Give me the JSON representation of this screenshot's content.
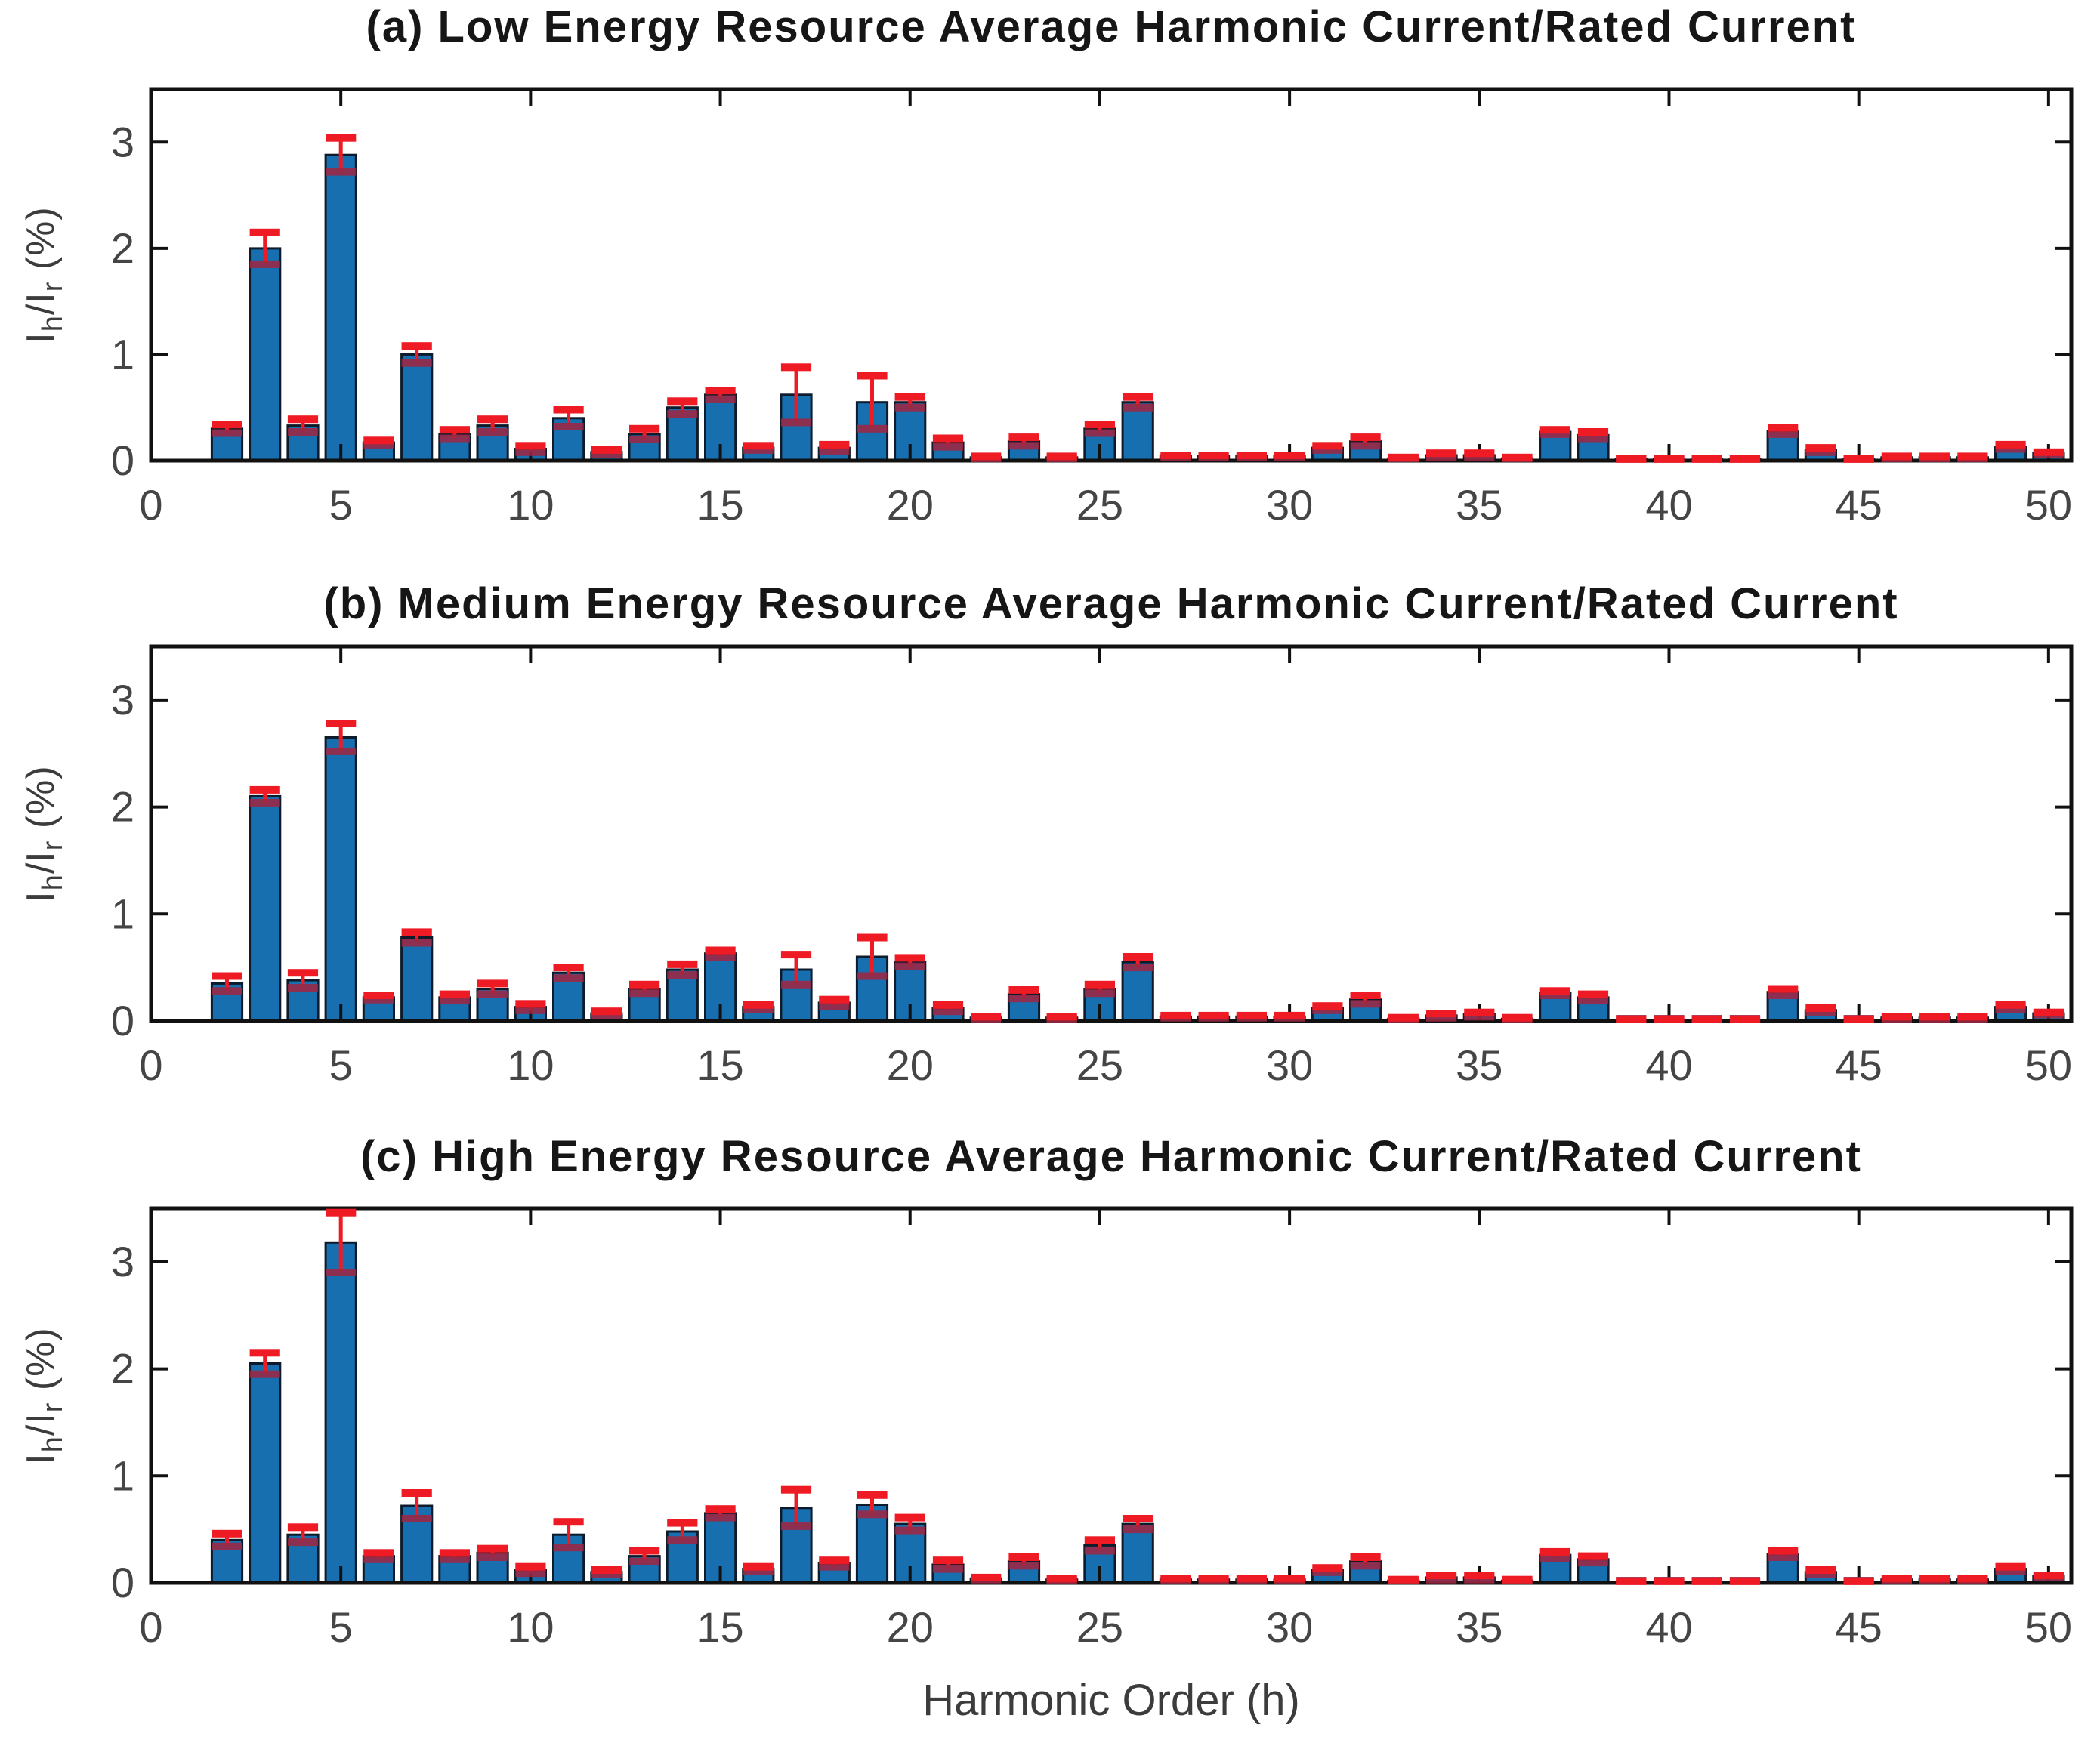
{
  "figure": {
    "xlabel": "Harmonic Order (h)",
    "ylabel": {
      "pre": "I",
      "sub1": "h",
      "mid": "/I",
      "sub2": "r",
      "post": " (%)"
    }
  },
  "chart_data": [
    {
      "type": "bar",
      "title": "(a) Low Energy Resource Average Harmonic Current/Rated Current",
      "ylabel": "I_h/I_r (%)",
      "xlabel": "",
      "xlim": [
        0,
        50.6
      ],
      "ylim": [
        0,
        3.5
      ],
      "xticks": [
        0,
        5,
        10,
        15,
        20,
        25,
        30,
        35,
        40,
        45,
        50
      ],
      "yticks": [
        0,
        1,
        2,
        3
      ],
      "grid": false,
      "bar_color": "#186fb0",
      "bar_edge_color": "#0d1b2a",
      "error_color": "#ee1b24",
      "error_low_color": "#9c2742",
      "x": [
        2,
        3,
        4,
        5,
        6,
        7,
        8,
        9,
        10,
        11,
        12,
        13,
        14,
        15,
        16,
        17,
        18,
        19,
        20,
        21,
        22,
        23,
        24,
        25,
        26,
        27,
        28,
        29,
        30,
        31,
        32,
        33,
        34,
        35,
        36,
        37,
        38,
        39,
        40,
        41,
        42,
        43,
        44,
        45,
        46,
        47,
        48,
        49,
        50
      ],
      "values": [
        0.3,
        2.0,
        0.33,
        2.88,
        0.17,
        1.0,
        0.25,
        0.33,
        0.11,
        0.4,
        0.08,
        0.25,
        0.5,
        0.62,
        0.12,
        0.62,
        0.12,
        0.55,
        0.55,
        0.17,
        0.03,
        0.18,
        0.03,
        0.3,
        0.55,
        0.04,
        0.04,
        0.04,
        0.04,
        0.12,
        0.18,
        0.02,
        0.05,
        0.05,
        0.02,
        0.27,
        0.24,
        0.01,
        0.01,
        0.01,
        0.01,
        0.28,
        0.1,
        0.01,
        0.03,
        0.03,
        0.03,
        0.13,
        0.07
      ],
      "errors": [
        0.04,
        0.15,
        0.06,
        0.16,
        0.02,
        0.08,
        0.04,
        0.06,
        0.03,
        0.08,
        0.02,
        0.05,
        0.06,
        0.04,
        0.02,
        0.26,
        0.03,
        0.25,
        0.05,
        0.04,
        0.01,
        0.04,
        0.01,
        0.04,
        0.05,
        0.01,
        0.01,
        0.01,
        0.01,
        0.02,
        0.04,
        0.01,
        0.02,
        0.02,
        0.01,
        0.02,
        0.03,
        0.005,
        0.005,
        0.005,
        0.005,
        0.03,
        0.02,
        0.005,
        0.01,
        0.01,
        0.01,
        0.02,
        0.01
      ]
    },
    {
      "type": "bar",
      "title": "(b) Medium Energy Resource Average Harmonic Current/Rated Current",
      "ylabel": "I_h/I_r (%)",
      "xlabel": "",
      "xlim": [
        0,
        50.6
      ],
      "ylim": [
        0,
        3.5
      ],
      "xticks": [
        0,
        5,
        10,
        15,
        20,
        25,
        30,
        35,
        40,
        45,
        50
      ],
      "yticks": [
        0,
        1,
        2,
        3
      ],
      "grid": false,
      "bar_color": "#186fb0",
      "bar_edge_color": "#0d1b2a",
      "error_color": "#ee1b24",
      "error_low_color": "#9c2742",
      "x": [
        2,
        3,
        4,
        5,
        6,
        7,
        8,
        9,
        10,
        11,
        12,
        13,
        14,
        15,
        16,
        17,
        18,
        19,
        20,
        21,
        22,
        23,
        24,
        25,
        26,
        27,
        28,
        29,
        30,
        31,
        32,
        33,
        34,
        35,
        36,
        37,
        38,
        39,
        40,
        41,
        42,
        43,
        44,
        45,
        46,
        47,
        48,
        49,
        50
      ],
      "values": [
        0.35,
        2.1,
        0.38,
        2.65,
        0.22,
        0.78,
        0.22,
        0.3,
        0.13,
        0.45,
        0.07,
        0.3,
        0.48,
        0.63,
        0.13,
        0.48,
        0.17,
        0.6,
        0.55,
        0.12,
        0.03,
        0.25,
        0.03,
        0.3,
        0.55,
        0.04,
        0.04,
        0.04,
        0.04,
        0.12,
        0.2,
        0.02,
        0.05,
        0.06,
        0.02,
        0.26,
        0.22,
        0.01,
        0.01,
        0.01,
        0.01,
        0.27,
        0.1,
        0.01,
        0.03,
        0.03,
        0.03,
        0.13,
        0.07
      ],
      "errors": [
        0.07,
        0.06,
        0.07,
        0.13,
        0.02,
        0.05,
        0.03,
        0.05,
        0.03,
        0.05,
        0.02,
        0.04,
        0.05,
        0.03,
        0.02,
        0.14,
        0.03,
        0.18,
        0.04,
        0.03,
        0.01,
        0.04,
        0.01,
        0.04,
        0.05,
        0.01,
        0.01,
        0.01,
        0.01,
        0.02,
        0.04,
        0.01,
        0.02,
        0.02,
        0.01,
        0.02,
        0.03,
        0.005,
        0.005,
        0.005,
        0.005,
        0.03,
        0.02,
        0.005,
        0.01,
        0.01,
        0.01,
        0.02,
        0.01
      ]
    },
    {
      "type": "bar",
      "title": "(c) High Energy Resource Average Harmonic Current/Rated Current",
      "ylabel": "I_h/I_r (%)",
      "xlabel": "Harmonic Order (h)",
      "xlim": [
        0,
        50.6
      ],
      "ylim": [
        0,
        3.5
      ],
      "xticks": [
        0,
        5,
        10,
        15,
        20,
        25,
        30,
        35,
        40,
        45,
        50
      ],
      "yticks": [
        0,
        1,
        2,
        3
      ],
      "grid": false,
      "bar_color": "#186fb0",
      "bar_edge_color": "#0d1b2a",
      "error_color": "#ee1b24",
      "error_low_color": "#9c2742",
      "x": [
        2,
        3,
        4,
        5,
        6,
        7,
        8,
        9,
        10,
        11,
        12,
        13,
        14,
        15,
        16,
        17,
        18,
        19,
        20,
        21,
        22,
        23,
        24,
        25,
        26,
        27,
        28,
        29,
        30,
        31,
        32,
        33,
        34,
        35,
        36,
        37,
        38,
        39,
        40,
        41,
        42,
        43,
        44,
        45,
        46,
        47,
        48,
        49,
        50
      ],
      "values": [
        0.4,
        2.05,
        0.45,
        3.18,
        0.25,
        0.72,
        0.25,
        0.28,
        0.12,
        0.45,
        0.1,
        0.25,
        0.48,
        0.65,
        0.13,
        0.7,
        0.18,
        0.73,
        0.55,
        0.17,
        0.04,
        0.2,
        0.03,
        0.35,
        0.55,
        0.03,
        0.03,
        0.03,
        0.03,
        0.12,
        0.2,
        0.02,
        0.05,
        0.05,
        0.02,
        0.26,
        0.22,
        0.01,
        0.01,
        0.01,
        0.01,
        0.27,
        0.1,
        0.01,
        0.03,
        0.03,
        0.03,
        0.13,
        0.06
      ],
      "errors": [
        0.06,
        0.1,
        0.07,
        0.28,
        0.03,
        0.12,
        0.03,
        0.04,
        0.03,
        0.12,
        0.02,
        0.05,
        0.08,
        0.04,
        0.02,
        0.17,
        0.03,
        0.09,
        0.06,
        0.04,
        0.01,
        0.04,
        0.01,
        0.05,
        0.05,
        0.01,
        0.01,
        0.01,
        0.01,
        0.02,
        0.04,
        0.01,
        0.02,
        0.02,
        0.01,
        0.03,
        0.03,
        0.005,
        0.005,
        0.005,
        0.005,
        0.03,
        0.02,
        0.005,
        0.01,
        0.01,
        0.01,
        0.02,
        0.01
      ]
    }
  ]
}
